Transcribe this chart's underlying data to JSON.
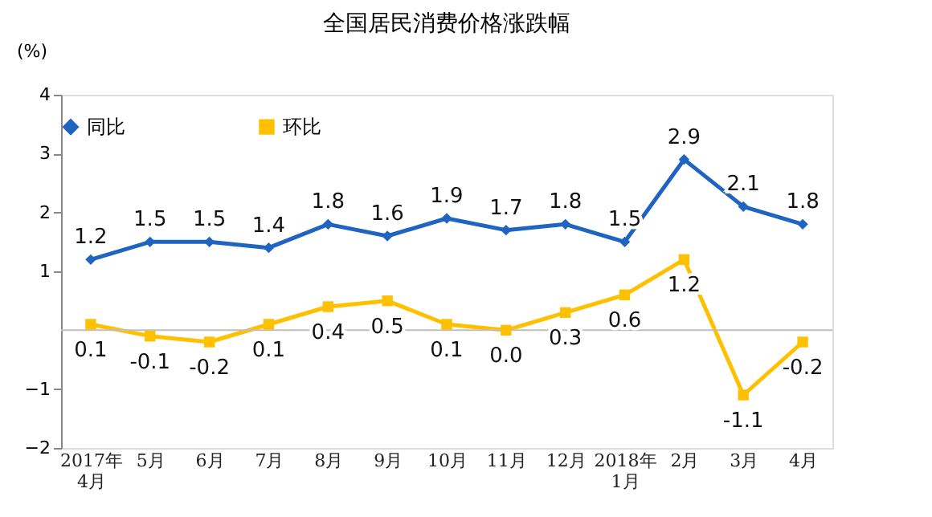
{
  "chart_data": {
    "type": "line",
    "title": "全国居民消费价格涨跌幅",
    "ylabel": "(%)",
    "categories": [
      "2017年\n4月",
      "5月",
      "6月",
      "7月",
      "8月",
      "9月",
      "10月",
      "11月",
      "12月",
      "2018年\n1月",
      "2月",
      "3月",
      "4月"
    ],
    "series": [
      {
        "name": "同比",
        "color": "#1f64c0",
        "marker": "diamond",
        "values": [
          1.2,
          1.5,
          1.5,
          1.4,
          1.8,
          1.6,
          1.9,
          1.7,
          1.8,
          1.5,
          2.9,
          2.1,
          1.8
        ],
        "value_labels": [
          "1.2",
          "1.5",
          "1.5",
          "1.4",
          "1.8",
          "1.6",
          "1.9",
          "1.7",
          "1.8",
          "1.5",
          "2.9",
          "2.1",
          "1.8"
        ]
      },
      {
        "name": "环比",
        "color": "#ffc000",
        "marker": "square",
        "values": [
          0.1,
          -0.1,
          -0.2,
          0.1,
          0.4,
          0.5,
          0.1,
          0.0,
          0.3,
          0.6,
          1.2,
          -1.1,
          -0.2
        ],
        "value_labels": [
          "0.1",
          "-0.1",
          "-0.2",
          "0.1",
          "0.4",
          "0.5",
          "0.1",
          "0.0",
          "0.3",
          "0.6",
          "1.2",
          "-1.1",
          "-0.2"
        ]
      }
    ],
    "ylim": [
      -2,
      4
    ],
    "yticks": [
      4,
      3,
      2,
      1,
      -1,
      -2
    ],
    "ref_lines": [
      {
        "axis": "y",
        "value": 0,
        "color": "#bfbfbf"
      }
    ],
    "legend": "top",
    "grid": false
  }
}
